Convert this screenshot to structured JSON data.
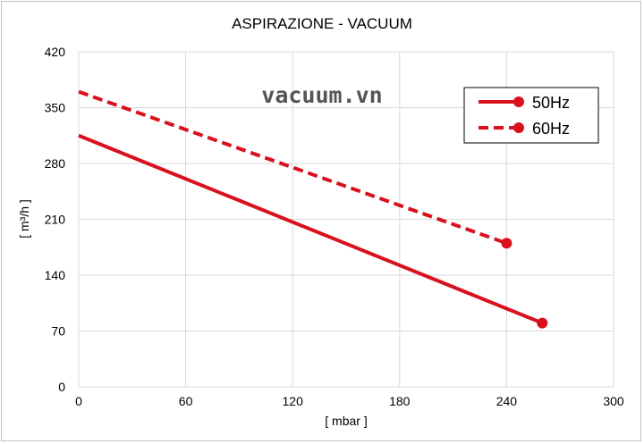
{
  "chart_data": {
    "type": "line",
    "title": "ASPIRAZIONE - VACUUM",
    "xlabel": "[ mbar ]",
    "ylabel": "[ m³/h ]",
    "xlim": [
      0,
      300
    ],
    "ylim": [
      0,
      420
    ],
    "xticks": [
      0,
      60,
      120,
      180,
      240,
      300
    ],
    "yticks": [
      0,
      70,
      140,
      210,
      280,
      350,
      420
    ],
    "grid": true,
    "legend_position": "top-right",
    "watermark": "vacuum.vn",
    "series": [
      {
        "name": "50Hz",
        "style": "solid",
        "color": "#d9101e",
        "x": [
          0,
          260
        ],
        "y": [
          315,
          80
        ]
      },
      {
        "name": "60Hz",
        "style": "dashed",
        "color": "#d9101e",
        "x": [
          0,
          240
        ],
        "y": [
          370,
          180
        ]
      }
    ]
  }
}
